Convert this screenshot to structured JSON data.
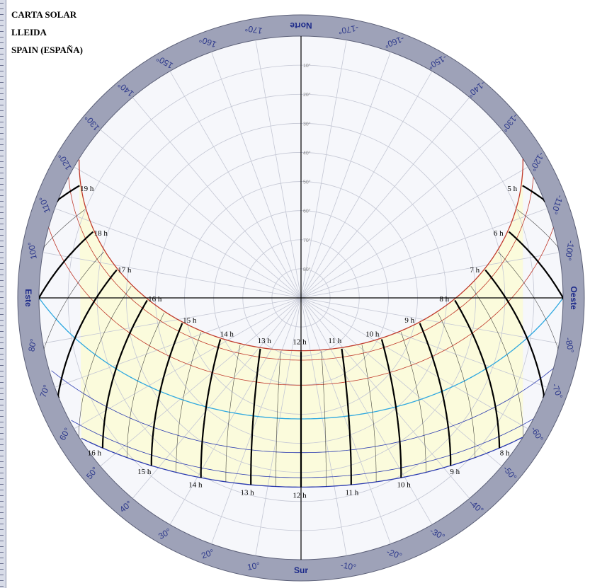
{
  "title": {
    "line1": "CARTA SOLAR",
    "line2": "LLEIDA",
    "line3": "SPAIN (ESPAÑA)"
  },
  "directions": {
    "north": "Norte",
    "south": "Sur",
    "east": "Este",
    "west": "Oeste"
  },
  "azimuth_labels": [
    {
      "az": 10,
      "text": "10°"
    },
    {
      "az": 20,
      "text": "20°"
    },
    {
      "az": 30,
      "text": "30°"
    },
    {
      "az": 40,
      "text": "40°"
    },
    {
      "az": 50,
      "text": "50°"
    },
    {
      "az": 60,
      "text": "60°"
    },
    {
      "az": 70,
      "text": "70°"
    },
    {
      "az": 80,
      "text": "80°"
    },
    {
      "az": 100,
      "text": "100°"
    },
    {
      "az": 110,
      "text": "110°"
    },
    {
      "az": 120,
      "text": "120°"
    },
    {
      "az": 130,
      "text": "130°"
    },
    {
      "az": 140,
      "text": "140°"
    },
    {
      "az": 150,
      "text": "150°"
    },
    {
      "az": 160,
      "text": "160°"
    },
    {
      "az": 170,
      "text": "170°"
    },
    {
      "az": -10,
      "text": "-10°"
    },
    {
      "az": -20,
      "text": "-20°"
    },
    {
      "az": -30,
      "text": "-30°"
    },
    {
      "az": -40,
      "text": "-40°"
    },
    {
      "az": -50,
      "text": "-50°"
    },
    {
      "az": -60,
      "text": "-60°"
    },
    {
      "az": -70,
      "text": "-70°"
    },
    {
      "az": -80,
      "text": "-80°"
    },
    {
      "az": -100,
      "text": "-100°"
    },
    {
      "az": -110,
      "text": "-110°"
    },
    {
      "az": -120,
      "text": "-120°"
    },
    {
      "az": -130,
      "text": "-130°"
    },
    {
      "az": -140,
      "text": "-140°"
    },
    {
      "az": -150,
      "text": "-150°"
    },
    {
      "az": -160,
      "text": "-160°"
    },
    {
      "az": -170,
      "text": "-170°"
    }
  ],
  "summer_hour_labels": [
    "5 h",
    "6 h",
    "7 h",
    "8 h",
    "9 h",
    "10 h",
    "11 h",
    "12 h",
    "13 h",
    "14 h",
    "15 h",
    "16 h",
    "17 h",
    "18 h",
    "19 h"
  ],
  "winter_hour_labels": [
    "8 h",
    "9 h",
    "10 h",
    "11 h",
    "12 h",
    "13 h",
    "14 h",
    "15 h",
    "16 h"
  ],
  "altitude_labels": [
    "10°",
    "20°",
    "30°",
    "40°",
    "50°",
    "60°",
    "70°",
    "80°"
  ],
  "colors": {
    "ring": "#9ea2b8",
    "sky": "#f6f7fb",
    "sun_region": "#fbfbdc",
    "summer_curve": "#c0392b",
    "equinox_curve": "#2ea8e0",
    "winter_curve": "#2a3ab0",
    "hour_line": "#000000",
    "grid": "#c4c7d4"
  }
}
